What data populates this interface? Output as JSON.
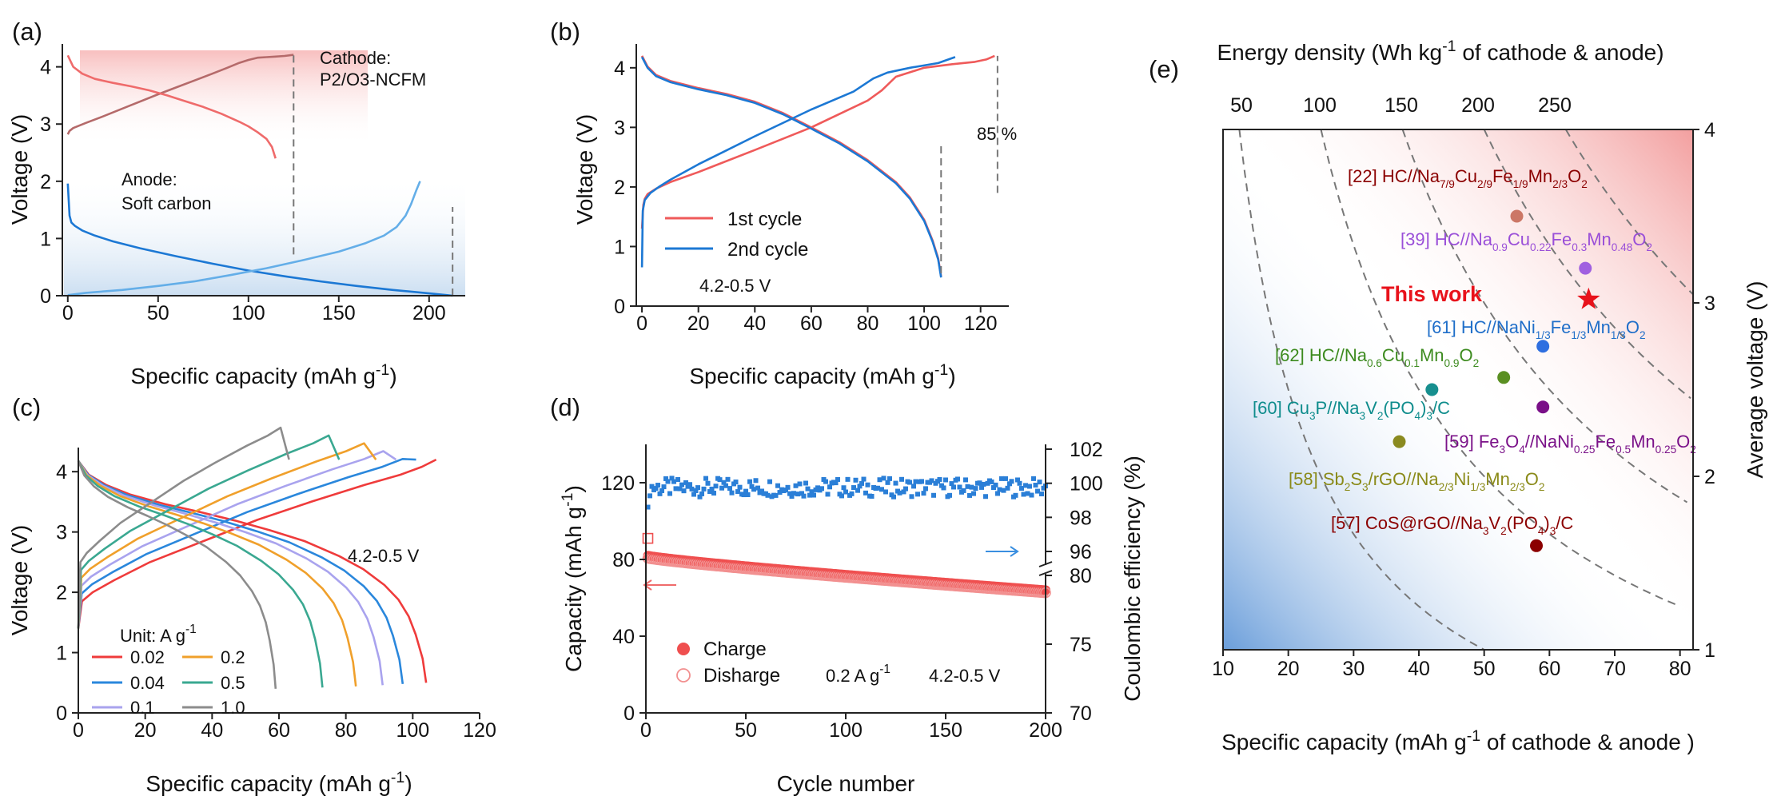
{
  "chart_data": [
    {
      "id": "a",
      "type": "line",
      "panel_label": "(a)",
      "xlabel": "Specific capacity (mAh g",
      "xlabel_sup": "-1",
      "xlabel_end": ")",
      "ylabel": "Voltage (V)",
      "xlim": [
        -3,
        220
      ],
      "ylim": [
        0,
        4.4
      ],
      "xticks": [
        0,
        50,
        100,
        150,
        200
      ],
      "yticks": [
        0,
        1,
        2,
        3,
        4
      ],
      "annotations": {
        "cathode": [
          "Cathode:",
          "P2/O3-NCFM"
        ],
        "anode": [
          "Anode:",
          "Soft carbon"
        ]
      },
      "series": [
        {
          "role": "cathode-charge",
          "color": "#b56a6a",
          "x": [
            0,
            1,
            3,
            10,
            20,
            35,
            50,
            60,
            70,
            80,
            88,
            95,
            100,
            105,
            110,
            115,
            120,
            125
          ],
          "y": [
            2.82,
            2.88,
            2.93,
            3.02,
            3.14,
            3.33,
            3.52,
            3.64,
            3.76,
            3.88,
            3.98,
            4.07,
            4.12,
            4.16,
            4.17,
            4.18,
            4.19,
            4.21
          ]
        },
        {
          "role": "cathode-discharge",
          "color": "#ef6b6b",
          "x": [
            0,
            3,
            8,
            15,
            25,
            35,
            45,
            55,
            65,
            75,
            85,
            95,
            100,
            105,
            110,
            113,
            115
          ],
          "y": [
            4.2,
            4.0,
            3.88,
            3.79,
            3.72,
            3.66,
            3.59,
            3.5,
            3.4,
            3.3,
            3.18,
            3.04,
            2.96,
            2.86,
            2.74,
            2.6,
            2.4
          ]
        },
        {
          "role": "anode-discharge",
          "color": "#1c78d4",
          "x": [
            0,
            1,
            2,
            4,
            8,
            15,
            25,
            40,
            60,
            80,
            100,
            120,
            140,
            160,
            180,
            200,
            210,
            213
          ],
          "y": [
            1.96,
            1.4,
            1.28,
            1.22,
            1.14,
            1.05,
            0.95,
            0.83,
            0.69,
            0.56,
            0.44,
            0.34,
            0.25,
            0.17,
            0.1,
            0.04,
            0.01,
            0.0
          ]
        },
        {
          "role": "anode-charge",
          "color": "#64aee8",
          "x": [
            0,
            10,
            30,
            50,
            70,
            90,
            110,
            130,
            150,
            165,
            175,
            182,
            187,
            190,
            193,
            195
          ],
          "y": [
            0.01,
            0.05,
            0.1,
            0.17,
            0.25,
            0.36,
            0.48,
            0.62,
            0.77,
            0.92,
            1.05,
            1.2,
            1.4,
            1.6,
            1.85,
            2.0
          ]
        }
      ]
    },
    {
      "id": "b",
      "type": "line",
      "panel_label": "(b)",
      "xlabel": "Specific capacity (mAh g",
      "xlabel_sup": "-1",
      "xlabel_end": ")",
      "ylabel": "Voltage (V)",
      "xlim": [
        -2,
        130
      ],
      "ylim": [
        0,
        4.4
      ],
      "xticks": [
        0,
        20,
        40,
        60,
        80,
        100,
        120
      ],
      "yticks": [
        0,
        1,
        2,
        3,
        4
      ],
      "annotation_percent": "85 %",
      "range_text": "4.2-0.5 V",
      "legend": [
        "1st cycle",
        "2nd cycle"
      ],
      "series": [
        {
          "name": "1st cycle",
          "color": "#ef5a5a",
          "x": [
            0,
            0.5,
            1,
            2,
            5,
            10,
            20,
            40,
            60,
            80,
            85,
            90,
            100,
            110,
            118,
            122,
            125
          ],
          "y": [
            1.3,
            1.7,
            1.8,
            1.88,
            1.97,
            2.08,
            2.25,
            2.62,
            3.0,
            3.45,
            3.62,
            3.85,
            4.0,
            4.06,
            4.1,
            4.14,
            4.2
          ]
        },
        {
          "name": "1st cycle",
          "color": "#ef5a5a",
          "x": [
            0,
            2,
            5,
            10,
            20,
            30,
            40,
            50,
            60,
            70,
            80,
            90,
            95,
            100,
            103,
            105,
            106
          ],
          "y": [
            4.2,
            4.02,
            3.88,
            3.78,
            3.66,
            3.56,
            3.43,
            3.24,
            3.0,
            2.75,
            2.45,
            2.08,
            1.82,
            1.45,
            1.1,
            0.8,
            0.5
          ]
        },
        {
          "name": "2nd cycle",
          "color": "#1c78d4",
          "x": [
            0,
            0.3,
            1,
            3,
            6,
            10,
            20,
            40,
            60,
            75,
            82,
            87,
            95,
            105,
            111
          ],
          "y": [
            0.65,
            1.6,
            1.78,
            1.9,
            2.0,
            2.12,
            2.38,
            2.85,
            3.3,
            3.6,
            3.82,
            3.92,
            4.0,
            4.08,
            4.18
          ]
        },
        {
          "name": "2nd cycle",
          "color": "#1c78d4",
          "x": [
            0,
            2,
            5,
            10,
            20,
            30,
            40,
            50,
            60,
            70,
            80,
            90,
            95,
            100,
            103,
            105,
            106
          ],
          "y": [
            4.18,
            4.0,
            3.86,
            3.76,
            3.64,
            3.54,
            3.41,
            3.22,
            2.98,
            2.73,
            2.43,
            2.06,
            1.8,
            1.43,
            1.08,
            0.78,
            0.48
          ]
        }
      ]
    },
    {
      "id": "c",
      "type": "line",
      "panel_label": "(c)",
      "xlabel": "Specific capacity (mAh g",
      "xlabel_sup": "-1",
      "xlabel_end": ")",
      "ylabel": "Voltage (V)",
      "xlim": [
        0,
        120
      ],
      "ylim": [
        0,
        4.4
      ],
      "xticks": [
        0,
        20,
        40,
        60,
        80,
        100,
        120
      ],
      "yticks": [
        0,
        1,
        2,
        3,
        4
      ],
      "range_text": "4.2-0.5 V",
      "legend_title": "Unit: A g",
      "legend_title_sup": "-1",
      "series": [
        {
          "name": "0.02",
          "color": "#ef3b3b",
          "cap": 104,
          "chg_cap": 107
        },
        {
          "name": "0.04",
          "color": "#2a87dc",
          "cap": 97,
          "chg_cap": 101
        },
        {
          "name": "0.1",
          "color": "#a9a3ee",
          "cap": 91,
          "chg_cap": 95
        },
        {
          "name": "0.2",
          "color": "#f0a02b",
          "cap": 83,
          "chg_cap": 89
        },
        {
          "name": "0.5",
          "color": "#3aa891",
          "cap": 73,
          "chg_cap": 78
        },
        {
          "name": "1.0",
          "color": "#8c8c8c",
          "cap": 59,
          "chg_cap": 63
        }
      ]
    },
    {
      "id": "d",
      "type": "scatter",
      "panel_label": "(d)",
      "xlabel": "Cycle number",
      "ylabel_left": "Capacity (mAh g",
      "ylabel_left_sup": "-1",
      "ylabel_left_end": ")",
      "ylabel_right": "Coulombic efficiency (%)",
      "xlim": [
        0,
        200
      ],
      "ylim_left": [
        0,
        140
      ],
      "xticks": [
        0,
        50,
        100,
        150,
        200
      ],
      "yticks_left": [
        0,
        40,
        80,
        120
      ],
      "yticks_right_lower": [
        70,
        75,
        80
      ],
      "yticks_right_upper": [
        96,
        98,
        100,
        102
      ],
      "legend": [
        "Charge",
        "Disharge"
      ],
      "rate_text": "0.2 A g",
      "rate_sup": "-1",
      "range_text": "4.2-0.5 V",
      "charge_capacity": {
        "start": 82,
        "end": 64
      },
      "discharge_capacity": {
        "start": 81.5,
        "end": 63.5
      },
      "coulombic_efficiency_range": [
        99.2,
        100.3
      ],
      "colors": {
        "charge": "#ef4f4f",
        "ce": "#2b7fd7"
      }
    },
    {
      "id": "e",
      "type": "scatter",
      "panel_label": "(e)",
      "xlabel": "Specific capacity (mAh g",
      "xlabel_sup": "-1",
      "xlabel_end": " of cathode & anode )",
      "ylabel": "Average voltage (V)",
      "top_label": "Energy density (Wh kg",
      "top_label_sup": "-1",
      "top_label_end": " of cathode & anode)",
      "xlim": [
        10,
        82
      ],
      "ylim": [
        1,
        4
      ],
      "xticks": [
        10,
        20,
        30,
        40,
        50,
        60,
        70,
        80
      ],
      "yticks": [
        1,
        2,
        3,
        4
      ],
      "top_ticks": [
        50,
        100,
        150,
        200,
        250
      ],
      "energy_contours": [
        50,
        100,
        150,
        200,
        250
      ],
      "points": [
        {
          "ref": "[22]",
          "x": 55,
          "y": 3.5,
          "color": "#cc7766",
          "label_color": "#8b0000",
          "parts": [
            [
              "HC//Na",
              ""
            ],
            [
              "7/9",
              "sub"
            ],
            [
              "Cu",
              ""
            ],
            [
              "2/9",
              "sub"
            ],
            [
              "Fe",
              ""
            ],
            [
              "1/9",
              "sub"
            ],
            [
              "Mn",
              ""
            ],
            [
              "2/3",
              "sub"
            ],
            [
              "O",
              ""
            ],
            [
              "2",
              "sub"
            ]
          ]
        },
        {
          "ref": "[39]",
          "x": 65.5,
          "y": 3.2,
          "color": "#a060e0",
          "label_color": "#9a4fd8",
          "parts": [
            [
              "HC//Na",
              ""
            ],
            [
              "0.9",
              "sub"
            ],
            [
              "Cu",
              ""
            ],
            [
              "0.22",
              "sub"
            ],
            [
              "Fe",
              ""
            ],
            [
              "0.3",
              "sub"
            ],
            [
              "Mn",
              ""
            ],
            [
              "0.48",
              "sub"
            ],
            [
              "O",
              ""
            ],
            [
              "2",
              "sub"
            ]
          ]
        },
        {
          "ref": "[61]",
          "x": 59,
          "y": 2.75,
          "color": "#2f6fe0",
          "label_color": "#1f6ec9",
          "parts": [
            [
              "HC//NaNi",
              ""
            ],
            [
              "1/3",
              "sub"
            ],
            [
              "Fe",
              ""
            ],
            [
              "1/3",
              "sub"
            ],
            [
              "Mn",
              ""
            ],
            [
              "1/3",
              "sub"
            ],
            [
              "O",
              ""
            ],
            [
              "2",
              "sub"
            ]
          ]
        },
        {
          "ref": "[62]",
          "x": 53,
          "y": 2.57,
          "color": "#5a8f22",
          "label_color": "#3d8b1f",
          "parts": [
            [
              "HC//Na",
              ""
            ],
            [
              "0.6",
              "sub"
            ],
            [
              "Cu",
              ""
            ],
            [
              "0.1",
              "sub"
            ],
            [
              "Mn",
              ""
            ],
            [
              "0.9",
              "sub"
            ],
            [
              "O",
              ""
            ],
            [
              "2",
              "sub"
            ]
          ]
        },
        {
          "ref": "[60]",
          "x": 42,
          "y": 2.5,
          "color": "#178f8f",
          "label_color": "#0e8c8c",
          "parts": [
            [
              "Cu",
              ""
            ],
            [
              "3",
              "sub"
            ],
            [
              "P//Na",
              ""
            ],
            [
              "3",
              "sub"
            ],
            [
              "V",
              ""
            ],
            [
              "2",
              "sub"
            ],
            [
              "(PO",
              ""
            ],
            [
              "4",
              "sub"
            ],
            [
              ")",
              ""
            ],
            [
              "3",
              "sub"
            ],
            [
              "/C",
              ""
            ]
          ]
        },
        {
          "ref": "[59]",
          "x": 59,
          "y": 2.4,
          "color": "#7a1088",
          "label_color": "#7b1289",
          "parts": [
            [
              "Fe",
              ""
            ],
            [
              "3",
              "sub"
            ],
            [
              "O",
              ""
            ],
            [
              "4",
              "sub"
            ],
            [
              "//NaNi",
              ""
            ],
            [
              "0.25",
              "sub"
            ],
            [
              "Fe",
              ""
            ],
            [
              "0.5",
              "sub"
            ],
            [
              "Mn",
              ""
            ],
            [
              "0.25",
              "sub"
            ],
            [
              "O",
              ""
            ],
            [
              "2",
              "sub"
            ]
          ]
        },
        {
          "ref": "[58]",
          "x": 37,
          "y": 2.2,
          "color": "#8a8a20",
          "label_color": "#8a8a18",
          "parts": [
            [
              "Sb",
              ""
            ],
            [
              "2",
              "sub"
            ],
            [
              "S",
              ""
            ],
            [
              "3",
              "sub"
            ],
            [
              "/rGO//Na",
              ""
            ],
            [
              "2/3",
              "sub"
            ],
            [
              "Ni",
              ""
            ],
            [
              "1/3",
              "sub"
            ],
            [
              "Mn",
              ""
            ],
            [
              "2/3",
              "sub"
            ],
            [
              "O",
              ""
            ],
            [
              "2",
              "sub"
            ]
          ]
        },
        {
          "ref": "[57]",
          "x": 58,
          "y": 1.6,
          "color": "#8b0000",
          "label_color": "#8b0000",
          "parts": [
            [
              "CoS@rGO//Na",
              ""
            ],
            [
              "3",
              "sub"
            ],
            [
              "V",
              ""
            ],
            [
              "2",
              "sub"
            ],
            [
              "(PO",
              ""
            ],
            [
              "4",
              "sub"
            ],
            [
              ")",
              ""
            ],
            [
              "3",
              "sub"
            ],
            [
              "/C",
              ""
            ]
          ]
        }
      ],
      "this_work": {
        "label": "This work",
        "x": 66,
        "y": 3.02,
        "color": "#e8121b"
      }
    }
  ]
}
